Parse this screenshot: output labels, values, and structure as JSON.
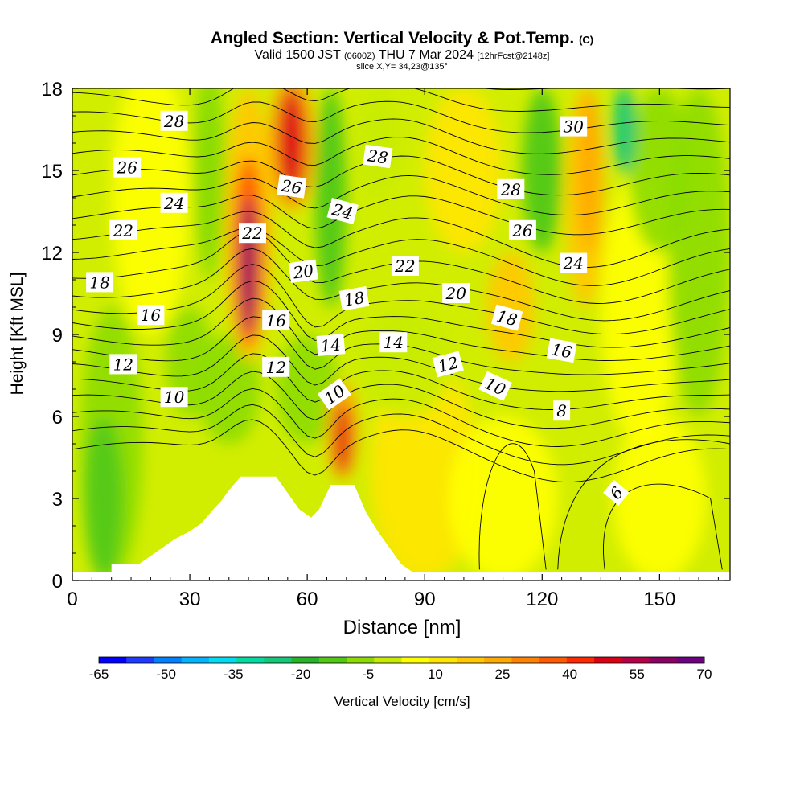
{
  "header": {
    "title": "Angled Section: Vertical Velocity & Pot.Temp.",
    "title_mark": "(C)",
    "valid_a": "Valid 1500 JST",
    "valid_b": "(0600Z)",
    "valid_c": "THU 7 Mar 2024",
    "valid_d": "[12hrFcst@2148z]",
    "slice": "slice X,Y= 34,23@135°"
  },
  "chart_data": {
    "type": "heatmap",
    "xlabel": "Distance [nm]",
    "ylabel": "Height [Kft MSL]",
    "xlim": [
      0,
      168
    ],
    "ylim": [
      0,
      18
    ],
    "x_ticks": [
      "0",
      "30",
      "60",
      "90",
      "120",
      "150"
    ],
    "y_ticks": [
      "0",
      "3",
      "6",
      "9",
      "12",
      "15",
      "18"
    ],
    "colorbar": {
      "label": "Vertical Velocity [cm/s]",
      "tick_labels": [
        "-65",
        "-50",
        "-35",
        "-20",
        "-5",
        "10",
        "25",
        "40",
        "55",
        "70"
      ],
      "colors": [
        "#0000ff",
        "#1e3cff",
        "#0082ff",
        "#00b4ff",
        "#00dcf0",
        "#00dca0",
        "#14c878",
        "#28b428",
        "#50c814",
        "#8cdc00",
        "#c8ec00",
        "#ffff00",
        "#ffe600",
        "#ffc800",
        "#ffaa00",
        "#ff8200",
        "#ff5a00",
        "#ff2800",
        "#dc0014",
        "#b40046",
        "#8c0064",
        "#6e0082"
      ]
    },
    "vertical_velocity_features": [
      {
        "kind": "updraft",
        "x": 45,
        "z_range": [
          8,
          18
        ],
        "max": 70
      },
      {
        "kind": "updraft",
        "x": 56,
        "z_range": [
          12,
          18
        ],
        "max": 55
      },
      {
        "kind": "updraft",
        "x": 69,
        "z_range": [
          4,
          7
        ],
        "max": 55
      },
      {
        "kind": "updraft",
        "x": 132,
        "z_range": [
          10,
          18
        ],
        "max": 25
      },
      {
        "kind": "downdraft",
        "x": 66,
        "z_range": [
          11,
          18
        ],
        "min": -20
      },
      {
        "kind": "downdraft",
        "x": 120,
        "z_range": [
          12,
          18
        ],
        "min": -20
      },
      {
        "kind": "downdraft",
        "x": 141,
        "z_range": [
          14,
          18
        ],
        "min": -35
      }
    ],
    "terrain": [
      {
        "x": 0,
        "z": 0.3
      },
      {
        "x": 10,
        "z": 0.3
      },
      {
        "x": 10,
        "z": 0.6
      },
      {
        "x": 17,
        "z": 0.6
      },
      {
        "x": 20,
        "z": 0.9
      },
      {
        "x": 23,
        "z": 1.2
      },
      {
        "x": 26,
        "z": 1.5
      },
      {
        "x": 30,
        "z": 1.8
      },
      {
        "x": 33,
        "z": 2.1
      },
      {
        "x": 36,
        "z": 2.6
      },
      {
        "x": 38,
        "z": 2.9
      },
      {
        "x": 40,
        "z": 3.3
      },
      {
        "x": 43,
        "z": 3.8
      },
      {
        "x": 52,
        "z": 3.8
      },
      {
        "x": 55,
        "z": 3.2
      },
      {
        "x": 58,
        "z": 2.6
      },
      {
        "x": 61,
        "z": 2.3
      },
      {
        "x": 63,
        "z": 2.6
      },
      {
        "x": 66,
        "z": 3.5
      },
      {
        "x": 72,
        "z": 3.5
      },
      {
        "x": 75,
        "z": 2.5
      },
      {
        "x": 78,
        "z": 1.8
      },
      {
        "x": 81,
        "z": 1.2
      },
      {
        "x": 84,
        "z": 0.6
      },
      {
        "x": 87,
        "z": 0.3
      },
      {
        "x": 168,
        "z": 0.3
      }
    ],
    "pot_temp_labels": [
      {
        "text": "28",
        "x": 26,
        "z": 16.8,
        "rot": 0
      },
      {
        "text": "26",
        "x": 14,
        "z": 15.1,
        "rot": 0
      },
      {
        "text": "24",
        "x": 26,
        "z": 13.8,
        "rot": 0
      },
      {
        "text": "22",
        "x": 13,
        "z": 12.8,
        "rot": 0
      },
      {
        "text": "18",
        "x": 7,
        "z": 10.9,
        "rot": 0
      },
      {
        "text": "16",
        "x": 20,
        "z": 9.7,
        "rot": 0
      },
      {
        "text": "12",
        "x": 13,
        "z": 7.9,
        "rot": 0
      },
      {
        "text": "10",
        "x": 26,
        "z": 6.7,
        "rot": 0
      },
      {
        "text": "22",
        "x": 46,
        "z": 12.7,
        "rot": 0
      },
      {
        "text": "26",
        "x": 56,
        "z": 14.4,
        "rot": 8
      },
      {
        "text": "20",
        "x": 59,
        "z": 11.3,
        "rot": -8
      },
      {
        "text": "16",
        "x": 52,
        "z": 9.5,
        "rot": 0
      },
      {
        "text": "12",
        "x": 52,
        "z": 7.8,
        "rot": 0
      },
      {
        "text": "24",
        "x": 69,
        "z": 13.5,
        "rot": 15
      },
      {
        "text": "28",
        "x": 78,
        "z": 15.5,
        "rot": 8
      },
      {
        "text": "18",
        "x": 72,
        "z": 10.3,
        "rot": -10
      },
      {
        "text": "14",
        "x": 66,
        "z": 8.6,
        "rot": -5
      },
      {
        "text": "10",
        "x": 67,
        "z": 6.8,
        "rot": -35
      },
      {
        "text": "14",
        "x": 82,
        "z": 8.7,
        "rot": 0
      },
      {
        "text": "22",
        "x": 85,
        "z": 11.5,
        "rot": 0
      },
      {
        "text": "20",
        "x": 98,
        "z": 10.5,
        "rot": 0
      },
      {
        "text": "12",
        "x": 96,
        "z": 7.9,
        "rot": -15
      },
      {
        "text": "28",
        "x": 112,
        "z": 14.3,
        "rot": 0
      },
      {
        "text": "26",
        "x": 115,
        "z": 12.8,
        "rot": 0
      },
      {
        "text": "18",
        "x": 111,
        "z": 9.6,
        "rot": 15
      },
      {
        "text": "10",
        "x": 108,
        "z": 7.1,
        "rot": 25
      },
      {
        "text": "30",
        "x": 128,
        "z": 16.6,
        "rot": 0
      },
      {
        "text": "24",
        "x": 128,
        "z": 11.6,
        "rot": 0
      },
      {
        "text": "16",
        "x": 125,
        "z": 8.4,
        "rot": 10
      },
      {
        "text": "8",
        "x": 125,
        "z": 6.2,
        "rot": 0
      },
      {
        "text": "6",
        "x": 139,
        "z": 3.2,
        "rot": -50
      }
    ]
  }
}
